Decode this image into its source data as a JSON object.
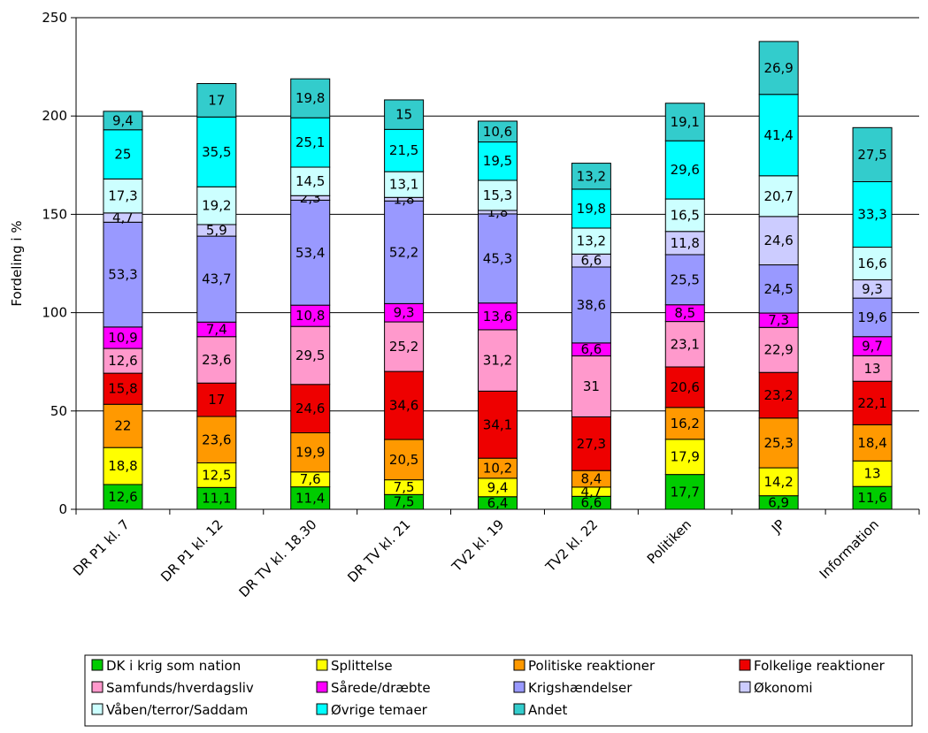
{
  "chart_data": {
    "type": "bar",
    "stacked": true,
    "title": "",
    "xlabel": "",
    "ylabel": "Fordeling i %",
    "ylim": [
      0,
      250
    ],
    "yticks": [
      0,
      50,
      100,
      150,
      200,
      250
    ],
    "grid": true,
    "legend_position": "bottom",
    "categories": [
      "DR P1 kl. 7",
      "DR P1 kl. 12",
      "DR TV kl. 18.30",
      "DR TV kl. 21",
      "TV2 kl. 19",
      "TV2 kl. 22",
      "Politiken",
      "JP",
      "Information"
    ],
    "series": [
      {
        "name": "DK i krig som nation",
        "color": "#00cc00",
        "values": [
          12.6,
          11.1,
          11.4,
          7.5,
          6.4,
          6.6,
          17.7,
          6.9,
          11.6
        ]
      },
      {
        "name": "Splittelse",
        "color": "#ffff00",
        "values": [
          18.8,
          12.5,
          7.6,
          7.5,
          9.4,
          4.7,
          17.9,
          14.2,
          13
        ]
      },
      {
        "name": "Politiske reaktioner",
        "color": "#ff9900",
        "values": [
          22,
          23.6,
          19.9,
          20.5,
          10.2,
          8.4,
          16.2,
          25.3,
          18.4
        ]
      },
      {
        "name": "Folkelige reaktioner",
        "color": "#ee0000",
        "values": [
          15.8,
          17,
          24.6,
          34.6,
          34.1,
          27.3,
          20.6,
          23.2,
          22.1
        ]
      },
      {
        "name": "Samfunds/hverdagsliv",
        "color": "#ff99cc",
        "values": [
          12.6,
          23.6,
          29.5,
          25.2,
          31.2,
          31,
          23.1,
          22.9,
          13
        ]
      },
      {
        "name": "Sårede/dræbte",
        "color": "#ff00ff",
        "values": [
          10.9,
          7.4,
          10.8,
          9.3,
          13.6,
          6.6,
          8.5,
          7.3,
          9.7
        ]
      },
      {
        "name": "Krigshændelser",
        "color": "#9999ff",
        "values": [
          53.3,
          43.7,
          53.4,
          52.2,
          45.3,
          38.6,
          25.5,
          24.5,
          19.6
        ]
      },
      {
        "name": "Økonomi",
        "color": "#ccccff",
        "values": [
          4.7,
          5.9,
          2.3,
          1.8,
          1.8,
          6.6,
          11.8,
          24.6,
          9.3
        ]
      },
      {
        "name": "Våben/terror/Saddam",
        "color": "#ccffff",
        "values": [
          17.3,
          19.2,
          14.5,
          13.1,
          15.3,
          13.2,
          16.5,
          20.7,
          16.6
        ]
      },
      {
        "name": "Øvrige temaer",
        "color": "#00ffff",
        "values": [
          25,
          35.5,
          25.1,
          21.5,
          19.5,
          19.8,
          29.6,
          41.4,
          33.3
        ]
      },
      {
        "name": "Andet",
        "color": "#33cccc",
        "values": [
          9.4,
          17,
          19.8,
          15,
          10.6,
          13.2,
          19.1,
          26.9,
          27.5
        ]
      }
    ],
    "value_labels": [
      [
        "12,6",
        "11,1",
        "11,4",
        "7,5",
        "6,4",
        "6,6",
        "17,7",
        "6,9",
        "11,6"
      ],
      [
        "18,8",
        "12,5",
        "7,6",
        "7,5",
        "9,4",
        "4,7",
        "17,9",
        "14,2",
        "13"
      ],
      [
        "22",
        "23,6",
        "19,9",
        "20,5",
        "10,2",
        "8,4",
        "16,2",
        "25,3",
        "18,4"
      ],
      [
        "15,8",
        "17",
        "24,6",
        "34,6",
        "34,1",
        "27,3",
        "20,6",
        "23,2",
        "22,1"
      ],
      [
        "12,6",
        "23,6",
        "29,5",
        "25,2",
        "31,2",
        "31",
        "23,1",
        "22,9",
        "13"
      ],
      [
        "10,9",
        "7,4",
        "10,8",
        "9,3",
        "13,6",
        "6,6",
        "8,5",
        "7,3",
        "9,7"
      ],
      [
        "53,3",
        "43,7",
        "53,4",
        "52,2",
        "45,3",
        "38,6",
        "25,5",
        "24,5",
        "19,6"
      ],
      [
        "4,7",
        "5,9",
        "2,3",
        "1,8",
        "1,8",
        "6,6",
        "11,8",
        "24,6",
        "9,3"
      ],
      [
        "17,3",
        "19,2",
        "14,5",
        "13,1",
        "15,3",
        "13,2",
        "16,5",
        "20,7",
        "16,6"
      ],
      [
        "25",
        "35,5",
        "25,1",
        "21,5",
        "19,5",
        "19,8",
        "29,6",
        "41,4",
        "33,3"
      ],
      [
        "9,4",
        "17",
        "19,8",
        "15",
        "10,6",
        "13,2",
        "19,1",
        "26,9",
        "27,5"
      ]
    ]
  }
}
